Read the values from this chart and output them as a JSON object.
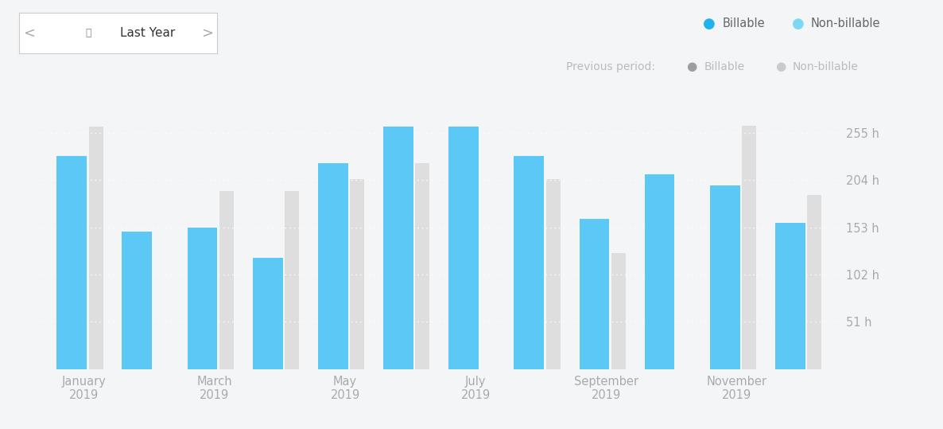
{
  "month_labels": [
    "January",
    "March",
    "May",
    "July",
    "September",
    "November"
  ],
  "month_display_idx": [
    0,
    2,
    4,
    6,
    8,
    10
  ],
  "values_2019": [
    230,
    148,
    153,
    120,
    222,
    262,
    262,
    230,
    162,
    210,
    198,
    158
  ],
  "values_2018": [
    262,
    0,
    192,
    192,
    205,
    222,
    0,
    205,
    125,
    0,
    263,
    188
  ],
  "bar_color_2019": "#5BC8F5",
  "bar_color_2018": "#DEDEDE",
  "background_color": "#F4F5F7",
  "ytick_values": [
    51,
    102,
    153,
    204,
    255
  ],
  "ytick_labels": [
    "51 h",
    "102 h",
    "153 h",
    "204 h",
    "255 h"
  ],
  "ymax": 278,
  "legend_billable_color": "#1EB3EA",
  "legend_nonbillable_color": "#7DD8F5",
  "legend_prev_billable_color": "#9E9E9E",
  "legend_prev_nonbillable_color": "#CBCBCB",
  "grid_color": "#FFFFFF",
  "tick_label_color": "#AAAAAA",
  "header_text_color": "#333333",
  "header_arrow_color": "#AAAAAA",
  "prev_period_label_color": "#BBBBBB"
}
